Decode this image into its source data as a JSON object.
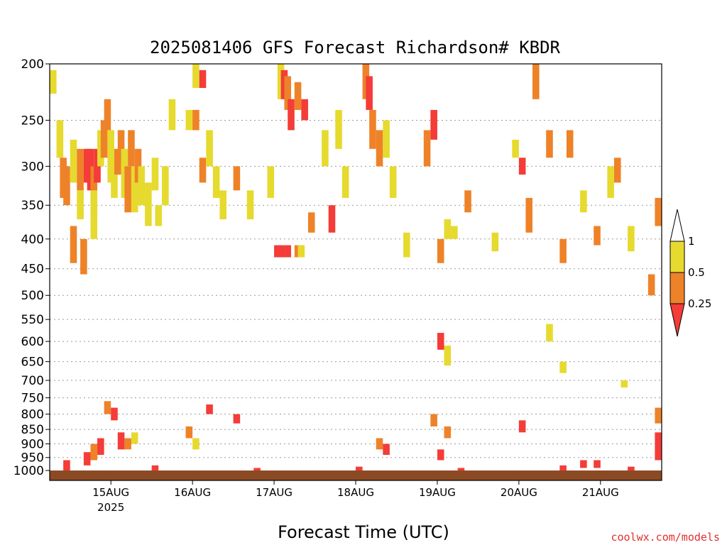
{
  "chart_data": {
    "type": "heatmap",
    "title": "2025081406 GFS Forecast Richardson# KBDR",
    "xlabel": "Forecast Time (UTC)",
    "ylabel": "",
    "credit": "coolwx.com/models",
    "y_scale": "log-pressure",
    "ylim": [
      1000,
      200
    ],
    "y_ticks": [
      200,
      250,
      300,
      350,
      400,
      450,
      500,
      550,
      600,
      650,
      700,
      750,
      800,
      850,
      900,
      950,
      1000
    ],
    "x_ticks": [
      {
        "label": "15AUG",
        "sublabel": "2025",
        "hours": 18
      },
      {
        "label": "16AUG",
        "sublabel": "",
        "hours": 42
      },
      {
        "label": "17AUG",
        "sublabel": "",
        "hours": 66
      },
      {
        "label": "18AUG",
        "sublabel": "",
        "hours": 90
      },
      {
        "label": "19AUG",
        "sublabel": "",
        "hours": 114
      },
      {
        "label": "20AUG",
        "sublabel": "",
        "hours": 138
      },
      {
        "label": "21AUG",
        "sublabel": "",
        "hours": 162
      }
    ],
    "xlim_hours": [
      0,
      180
    ],
    "grid": "dotted horizontal at pressure ticks",
    "colorbar": {
      "labels": [
        "1",
        "0.5",
        "0.25"
      ],
      "bins": [
        {
          "range": "0.5-1",
          "color": "#e6da2e"
        },
        {
          "range": "0.25-0.5",
          "color": "#ee8228"
        },
        {
          "range": "<0.25",
          "color": "#f43c38"
        },
        {
          "range": ">1",
          "color": "#ffffff"
        }
      ]
    },
    "ground_color": "#8b4a24",
    "cells": [
      {
        "t": 0,
        "p1": 205,
        "p2": 225,
        "c": "y"
      },
      {
        "t": 2,
        "p1": 250,
        "p2": 290,
        "c": "y"
      },
      {
        "t": 3,
        "p1": 290,
        "p2": 340,
        "c": "o"
      },
      {
        "t": 4,
        "p1": 300,
        "p2": 350,
        "c": "o"
      },
      {
        "t": 6,
        "p1": 270,
        "p2": 320,
        "c": "y"
      },
      {
        "t": 6,
        "p1": 380,
        "p2": 440,
        "c": "o"
      },
      {
        "t": 8,
        "p1": 280,
        "p2": 330,
        "c": "o"
      },
      {
        "t": 8,
        "p1": 330,
        "p2": 370,
        "c": "y"
      },
      {
        "t": 9,
        "p1": 400,
        "p2": 460,
        "c": "o"
      },
      {
        "t": 10,
        "p1": 280,
        "p2": 320,
        "c": "r"
      },
      {
        "t": 11,
        "p1": 280,
        "p2": 330,
        "c": "r"
      },
      {
        "t": 12,
        "p1": 300,
        "p2": 360,
        "c": "o"
      },
      {
        "t": 12,
        "p1": 330,
        "p2": 400,
        "c": "y"
      },
      {
        "t": 13,
        "p1": 280,
        "p2": 320,
        "c": "r"
      },
      {
        "t": 14,
        "p1": 260,
        "p2": 300,
        "c": "y"
      },
      {
        "t": 15,
        "p1": 250,
        "p2": 290,
        "c": "o"
      },
      {
        "t": 16,
        "p1": 230,
        "p2": 260,
        "c": "o"
      },
      {
        "t": 17,
        "p1": 260,
        "p2": 320,
        "c": "y"
      },
      {
        "t": 18,
        "p1": 300,
        "p2": 340,
        "c": "y"
      },
      {
        "t": 19,
        "p1": 280,
        "p2": 310,
        "c": "o"
      },
      {
        "t": 20,
        "p1": 260,
        "p2": 300,
        "c": "o"
      },
      {
        "t": 21,
        "p1": 280,
        "p2": 340,
        "c": "y"
      },
      {
        "t": 22,
        "p1": 300,
        "p2": 360,
        "c": "o"
      },
      {
        "t": 23,
        "p1": 260,
        "p2": 300,
        "c": "o"
      },
      {
        "t": 24,
        "p1": 300,
        "p2": 360,
        "c": "y"
      },
      {
        "t": 25,
        "p1": 280,
        "p2": 320,
        "c": "o"
      },
      {
        "t": 26,
        "p1": 300,
        "p2": 350,
        "c": "y"
      },
      {
        "t": 28,
        "p1": 320,
        "p2": 380,
        "c": "y"
      },
      {
        "t": 30,
        "p1": 290,
        "p2": 330,
        "c": "y"
      },
      {
        "t": 31,
        "p1": 350,
        "p2": 380,
        "c": "y"
      },
      {
        "t": 33,
        "p1": 300,
        "p2": 350,
        "c": "y"
      },
      {
        "t": 35,
        "p1": 230,
        "p2": 260,
        "c": "y"
      },
      {
        "t": 40,
        "p1": 240,
        "p2": 260,
        "c": "y"
      },
      {
        "t": 42,
        "p1": 200,
        "p2": 220,
        "c": "y"
      },
      {
        "t": 42,
        "p1": 240,
        "p2": 260,
        "c": "o"
      },
      {
        "t": 44,
        "p1": 205,
        "p2": 220,
        "c": "r"
      },
      {
        "t": 44,
        "p1": 290,
        "p2": 320,
        "c": "o"
      },
      {
        "t": 46,
        "p1": 260,
        "p2": 300,
        "c": "y"
      },
      {
        "t": 48,
        "p1": 300,
        "p2": 340,
        "c": "y"
      },
      {
        "t": 50,
        "p1": 330,
        "p2": 370,
        "c": "y"
      },
      {
        "t": 54,
        "p1": 300,
        "p2": 330,
        "c": "o"
      },
      {
        "t": 58,
        "p1": 330,
        "p2": 370,
        "c": "y"
      },
      {
        "t": 64,
        "p1": 300,
        "p2": 340,
        "c": "y"
      },
      {
        "t": 67,
        "p1": 200,
        "p2": 230,
        "c": "y"
      },
      {
        "t": 68,
        "p1": 205,
        "p2": 230,
        "c": "r"
      },
      {
        "t": 69,
        "p1": 210,
        "p2": 240,
        "c": "o"
      },
      {
        "t": 70,
        "p1": 230,
        "p2": 260,
        "c": "r"
      },
      {
        "t": 72,
        "p1": 215,
        "p2": 240,
        "c": "o"
      },
      {
        "t": 74,
        "p1": 230,
        "p2": 250,
        "c": "r"
      },
      {
        "t": 66,
        "p1": 410,
        "p2": 430,
        "c": "r"
      },
      {
        "t": 67,
        "p1": 410,
        "p2": 430,
        "c": "r"
      },
      {
        "t": 69,
        "p1": 410,
        "p2": 430,
        "c": "r"
      },
      {
        "t": 72,
        "p1": 410,
        "p2": 430,
        "c": "o"
      },
      {
        "t": 73,
        "p1": 410,
        "p2": 430,
        "c": "y"
      },
      {
        "t": 76,
        "p1": 360,
        "p2": 390,
        "c": "o"
      },
      {
        "t": 80,
        "p1": 260,
        "p2": 300,
        "c": "y"
      },
      {
        "t": 82,
        "p1": 350,
        "p2": 390,
        "c": "r"
      },
      {
        "t": 84,
        "p1": 240,
        "p2": 280,
        "c": "y"
      },
      {
        "t": 86,
        "p1": 300,
        "p2": 340,
        "c": "y"
      },
      {
        "t": 92,
        "p1": 200,
        "p2": 230,
        "c": "o"
      },
      {
        "t": 93,
        "p1": 210,
        "p2": 240,
        "c": "r"
      },
      {
        "t": 94,
        "p1": 240,
        "p2": 280,
        "c": "o"
      },
      {
        "t": 96,
        "p1": 260,
        "p2": 300,
        "c": "o"
      },
      {
        "t": 98,
        "p1": 250,
        "p2": 290,
        "c": "y"
      },
      {
        "t": 100,
        "p1": 300,
        "p2": 340,
        "c": "y"
      },
      {
        "t": 104,
        "p1": 390,
        "p2": 430,
        "c": "y"
      },
      {
        "t": 110,
        "p1": 260,
        "p2": 300,
        "c": "o"
      },
      {
        "t": 112,
        "p1": 240,
        "p2": 270,
        "c": "r"
      },
      {
        "t": 114,
        "p1": 400,
        "p2": 440,
        "c": "o"
      },
      {
        "t": 116,
        "p1": 370,
        "p2": 400,
        "c": "y"
      },
      {
        "t": 118,
        "p1": 380,
        "p2": 400,
        "c": "y"
      },
      {
        "t": 122,
        "p1": 330,
        "p2": 360,
        "c": "o"
      },
      {
        "t": 130,
        "p1": 390,
        "p2": 420,
        "c": "y"
      },
      {
        "t": 136,
        "p1": 270,
        "p2": 290,
        "c": "y"
      },
      {
        "t": 138,
        "p1": 290,
        "p2": 310,
        "c": "r"
      },
      {
        "t": 140,
        "p1": 340,
        "p2": 390,
        "c": "o"
      },
      {
        "t": 142,
        "p1": 200,
        "p2": 230,
        "c": "o"
      },
      {
        "t": 146,
        "p1": 260,
        "p2": 290,
        "c": "o"
      },
      {
        "t": 150,
        "p1": 400,
        "p2": 440,
        "c": "o"
      },
      {
        "t": 152,
        "p1": 260,
        "p2": 290,
        "c": "o"
      },
      {
        "t": 156,
        "p1": 330,
        "p2": 360,
        "c": "y"
      },
      {
        "t": 160,
        "p1": 380,
        "p2": 410,
        "c": "o"
      },
      {
        "t": 164,
        "p1": 300,
        "p2": 340,
        "c": "y"
      },
      {
        "t": 166,
        "p1": 290,
        "p2": 320,
        "c": "o"
      },
      {
        "t": 170,
        "p1": 380,
        "p2": 420,
        "c": "y"
      },
      {
        "t": 176,
        "p1": 460,
        "p2": 500,
        "c": "o"
      },
      {
        "t": 178,
        "p1": 340,
        "p2": 380,
        "c": "o"
      },
      {
        "t": 114,
        "p1": 580,
        "p2": 620,
        "c": "r"
      },
      {
        "t": 116,
        "p1": 610,
        "p2": 660,
        "c": "y"
      },
      {
        "t": 146,
        "p1": 560,
        "p2": 600,
        "c": "y"
      },
      {
        "t": 150,
        "p1": 650,
        "p2": 680,
        "c": "y"
      },
      {
        "t": 168,
        "p1": 700,
        "p2": 720,
        "c": "y"
      },
      {
        "t": 16,
        "p1": 760,
        "p2": 800,
        "c": "o"
      },
      {
        "t": 18,
        "p1": 780,
        "p2": 820,
        "c": "r"
      },
      {
        "t": 20,
        "p1": 860,
        "p2": 920,
        "c": "r"
      },
      {
        "t": 22,
        "p1": 880,
        "p2": 920,
        "c": "o"
      },
      {
        "t": 24,
        "p1": 860,
        "p2": 900,
        "c": "y"
      },
      {
        "t": 14,
        "p1": 880,
        "p2": 940,
        "c": "r"
      },
      {
        "t": 12,
        "p1": 900,
        "p2": 960,
        "c": "o"
      },
      {
        "t": 10,
        "p1": 930,
        "p2": 980,
        "c": "r"
      },
      {
        "t": 40,
        "p1": 840,
        "p2": 880,
        "c": "o"
      },
      {
        "t": 42,
        "p1": 880,
        "p2": 920,
        "c": "y"
      },
      {
        "t": 46,
        "p1": 770,
        "p2": 800,
        "c": "r"
      },
      {
        "t": 54,
        "p1": 800,
        "p2": 830,
        "c": "r"
      },
      {
        "t": 96,
        "p1": 880,
        "p2": 920,
        "c": "o"
      },
      {
        "t": 98,
        "p1": 900,
        "p2": 940,
        "c": "r"
      },
      {
        "t": 112,
        "p1": 800,
        "p2": 840,
        "c": "o"
      },
      {
        "t": 114,
        "p1": 920,
        "p2": 960,
        "c": "r"
      },
      {
        "t": 116,
        "p1": 840,
        "p2": 880,
        "c": "o"
      },
      {
        "t": 138,
        "p1": 820,
        "p2": 860,
        "c": "r"
      },
      {
        "t": 156,
        "p1": 960,
        "p2": 990,
        "c": "r"
      },
      {
        "t": 160,
        "p1": 960,
        "p2": 990,
        "c": "r"
      },
      {
        "t": 178,
        "p1": 860,
        "p2": 960,
        "c": "r"
      },
      {
        "t": 178,
        "p1": 780,
        "p2": 830,
        "c": "o"
      },
      {
        "t": 4,
        "p1": 960,
        "p2": 1000,
        "c": "r"
      },
      {
        "t": 30,
        "p1": 980,
        "p2": 1000,
        "c": "r"
      },
      {
        "t": 60,
        "p1": 990,
        "p2": 1000,
        "c": "r"
      },
      {
        "t": 90,
        "p1": 985,
        "p2": 1000,
        "c": "r"
      },
      {
        "t": 120,
        "p1": 990,
        "p2": 1000,
        "c": "r"
      },
      {
        "t": 150,
        "p1": 980,
        "p2": 1000,
        "c": "r"
      },
      {
        "t": 170,
        "p1": 985,
        "p2": 1000,
        "c": "r"
      }
    ]
  }
}
